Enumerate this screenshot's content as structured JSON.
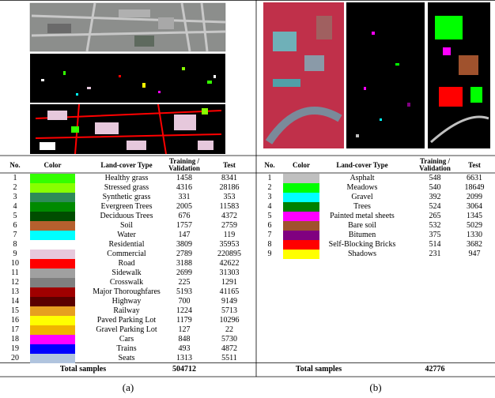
{
  "panels": [
    {
      "caption": "(a)",
      "table": {
        "headers": [
          "No.",
          "Color",
          "Land-cover Type",
          "Training / Validation",
          "Test"
        ],
        "rows": [
          {
            "no": 1,
            "color": "#33ff00",
            "type": "Healthy grass",
            "training": 1458,
            "test": 8341
          },
          {
            "no": 2,
            "color": "#88ff00",
            "type": "Stressed grass",
            "training": 4316,
            "test": 28186
          },
          {
            "no": 3,
            "color": "#2e8b57",
            "type": "Synthetic grass",
            "training": 331,
            "test": 353
          },
          {
            "no": 4,
            "color": "#008a00",
            "type": "Evergreen Trees",
            "training": 2005,
            "test": 11583
          },
          {
            "no": 5,
            "color": "#004d00",
            "type": "Deciduous Trees",
            "training": 676,
            "test": 4372
          },
          {
            "no": 6,
            "color": "#b5602e",
            "type": "Soil",
            "training": 1757,
            "test": 2759
          },
          {
            "no": 7,
            "color": "#00ffff",
            "type": "Water",
            "training": 147,
            "test": 119
          },
          {
            "no": 8,
            "color": "#ffffff",
            "type": "Residential",
            "training": 3809,
            "test": 35953
          },
          {
            "no": 9,
            "color": "#e6c8dc",
            "type": "Commercial",
            "training": 2789,
            "test": 220895
          },
          {
            "no": 10,
            "color": "#ff0000",
            "type": "Road",
            "training": 3188,
            "test": 42622
          },
          {
            "no": 11,
            "color": "#a0a0a0",
            "type": "Sidewalk",
            "training": 2699,
            "test": 31303
          },
          {
            "no": 12,
            "color": "#7f7f7f",
            "type": "Crosswalk",
            "training": 225,
            "test": 1291
          },
          {
            "no": 13,
            "color": "#a00000",
            "type": "Major Thoroughfares",
            "training": 5193,
            "test": 41165
          },
          {
            "no": 14,
            "color": "#5a0000",
            "type": "Highway",
            "training": 700,
            "test": 9149
          },
          {
            "no": 15,
            "color": "#e6a020",
            "type": "Railway",
            "training": 1224,
            "test": 5713
          },
          {
            "no": 16,
            "color": "#ffff00",
            "type": "Paved Parking Lot",
            "training": 1179,
            "test": 10296
          },
          {
            "no": 17,
            "color": "#f0b400",
            "type": "Gravel Parking Lot",
            "training": 127,
            "test": 22
          },
          {
            "no": 18,
            "color": "#ff00ff",
            "type": "Cars",
            "training": 848,
            "test": 5730
          },
          {
            "no": 19,
            "color": "#0000ff",
            "type": "Trains",
            "training": 493,
            "test": 4872
          },
          {
            "no": 20,
            "color": "#b0c4de",
            "type": "Seats",
            "training": 1313,
            "test": 5511
          }
        ],
        "total_label": "Total samples",
        "total": 504712
      }
    },
    {
      "caption": "(b)",
      "table": {
        "headers": [
          "No.",
          "Color",
          "Land-cover Type",
          "Training / Validation",
          "Test"
        ],
        "rows": [
          {
            "no": 1,
            "color": "#c0c0c0",
            "type": "Asphalt",
            "training": 548,
            "test": 6631
          },
          {
            "no": 2,
            "color": "#00ff00",
            "type": "Meadows",
            "training": 540,
            "test": 18649
          },
          {
            "no": 3,
            "color": "#00ffff",
            "type": "Gravel",
            "training": 392,
            "test": 2099
          },
          {
            "no": 4,
            "color": "#008000",
            "type": "Trees",
            "training": 524,
            "test": 3064
          },
          {
            "no": 5,
            "color": "#ff00ff",
            "type": "Painted metal sheets",
            "training": 265,
            "test": 1345
          },
          {
            "no": 6,
            "color": "#a0522d",
            "type": "Bare soil",
            "training": 532,
            "test": 5029
          },
          {
            "no": 7,
            "color": "#800080",
            "type": "Bitumen",
            "training": 375,
            "test": 1330
          },
          {
            "no": 8,
            "color": "#ff0000",
            "type": "Self-Blocking Bricks",
            "training": 514,
            "test": 3682
          },
          {
            "no": 9,
            "color": "#ffff00",
            "type": "Shadows",
            "training": 231,
            "test": 947
          }
        ],
        "total_label": "Total samples",
        "total": 42776
      }
    }
  ]
}
